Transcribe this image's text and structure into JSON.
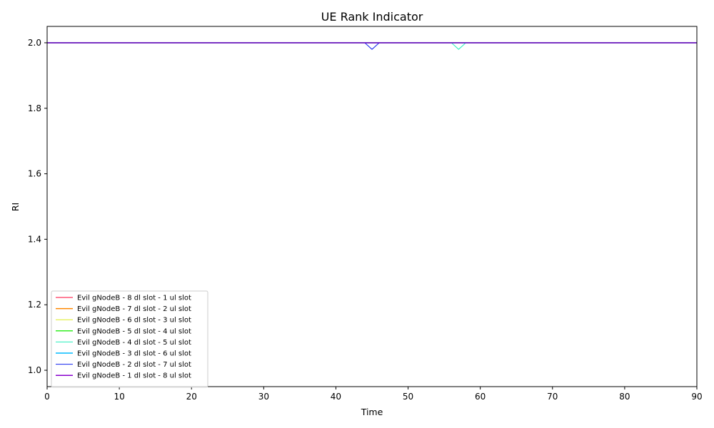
{
  "chart_data": {
    "type": "line",
    "title": "UE Rank Indicator",
    "xlabel": "Time",
    "ylabel": "RI",
    "xlim": [
      0,
      90
    ],
    "ylim": [
      0.95,
      2.05
    ],
    "xticks": [
      0,
      10,
      20,
      30,
      40,
      50,
      60,
      70,
      80,
      90
    ],
    "yticks": [
      1.0,
      1.2,
      1.4,
      1.6,
      1.8,
      2.0
    ],
    "ytick_labels": [
      "1.0",
      "1.2",
      "1.4",
      "1.6",
      "1.8",
      "2.0"
    ],
    "grid": false,
    "legend_position": "lower-left",
    "series": [
      {
        "name": "Evil gNodeB - 8 dl slot - 1 ul slot",
        "color": "#ff0033",
        "line_width": 1,
        "points": [
          [
            0,
            2
          ],
          [
            90,
            2
          ]
        ]
      },
      {
        "name": "Evil gNodeB - 7 dl slot - 2 ul slot",
        "color": "#ff8800",
        "line_width": 1.5,
        "points": [
          [
            0,
            2
          ],
          [
            90,
            2
          ]
        ]
      },
      {
        "name": "Evil gNodeB - 6 dl slot - 3 ul slot",
        "color": "#ddee22",
        "line_width": 1,
        "points": [
          [
            0,
            2
          ],
          [
            90,
            2
          ]
        ]
      },
      {
        "name": "Evil gNodeB - 5 dl slot - 4 ul slot",
        "color": "#33ee22",
        "line_width": 1.5,
        "points": [
          [
            0,
            2
          ],
          [
            90,
            2
          ]
        ]
      },
      {
        "name": "Evil gNodeB - 4 dl slot - 5 ul slot",
        "color": "#22eebb",
        "line_width": 1,
        "points": [
          [
            0,
            2
          ],
          [
            56,
            2
          ],
          [
            57,
            1.98
          ],
          [
            58,
            2
          ],
          [
            90,
            2
          ]
        ]
      },
      {
        "name": "Evil gNodeB - 3 dl slot - 6 ul slot",
        "color": "#00bbff",
        "line_width": 1.5,
        "points": [
          [
            0,
            2
          ],
          [
            90,
            2
          ]
        ]
      },
      {
        "name": "Evil gNodeB - 2 dl slot - 7 ul slot",
        "color": "#1122ee",
        "line_width": 1,
        "points": [
          [
            0,
            2
          ],
          [
            44,
            2
          ],
          [
            45,
            1.98
          ],
          [
            46,
            2
          ],
          [
            90,
            2
          ]
        ]
      },
      {
        "name": "Evil gNodeB - 1 dl slot - 8 ul slot",
        "color": "#8800cc",
        "line_width": 1.5,
        "points": [
          [
            0,
            2
          ],
          [
            90,
            2
          ]
        ]
      }
    ]
  }
}
